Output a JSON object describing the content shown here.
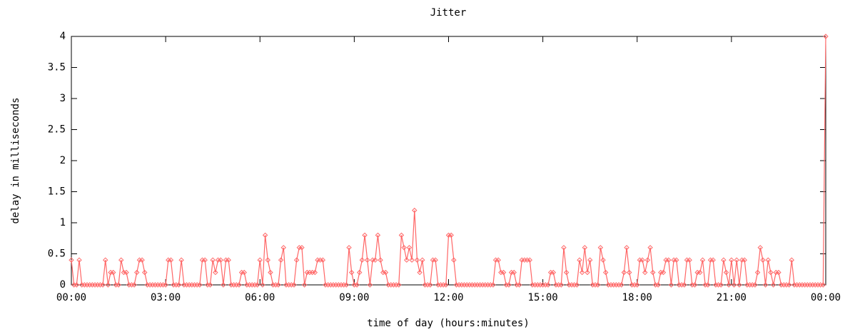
{
  "chart_data": {
    "type": "line",
    "title": "Jitter",
    "x_label": "time of day (hours:minutes)",
    "y_label": "delay in milliseconds",
    "x": [
      0,
      5,
      10,
      15,
      20,
      25,
      30,
      35,
      40,
      45,
      50,
      55,
      60,
      65,
      70,
      75,
      80,
      85,
      90,
      95,
      100,
      105,
      110,
      115,
      120,
      125,
      130,
      135,
      140,
      145,
      150,
      155,
      160,
      165,
      170,
      175,
      180,
      185,
      190,
      195,
      200,
      205,
      210,
      215,
      220,
      225,
      230,
      235,
      240,
      245,
      250,
      255,
      260,
      265,
      270,
      275,
      280,
      285,
      290,
      295,
      300,
      305,
      310,
      315,
      320,
      325,
      330,
      335,
      340,
      345,
      350,
      355,
      360,
      365,
      370,
      375,
      380,
      385,
      390,
      395,
      400,
      405,
      410,
      415,
      420,
      425,
      430,
      435,
      440,
      445,
      450,
      455,
      460,
      465,
      470,
      475,
      480,
      485,
      490,
      495,
      500,
      505,
      510,
      515,
      520,
      525,
      530,
      535,
      540,
      545,
      550,
      555,
      560,
      565,
      570,
      575,
      580,
      585,
      590,
      595,
      600,
      605,
      610,
      615,
      620,
      625,
      630,
      635,
      640,
      645,
      650,
      655,
      660,
      665,
      670,
      675,
      680,
      685,
      690,
      695,
      700,
      705,
      710,
      715,
      720,
      725,
      730,
      735,
      740,
      745,
      750,
      755,
      760,
      765,
      770,
      775,
      780,
      785,
      790,
      795,
      800,
      805,
      810,
      815,
      820,
      825,
      830,
      835,
      840,
      845,
      850,
      855,
      860,
      865,
      870,
      875,
      880,
      885,
      890,
      895,
      900,
      905,
      910,
      915,
      920,
      925,
      930,
      935,
      940,
      945,
      950,
      955,
      960,
      965,
      970,
      975,
      980,
      985,
      990,
      995,
      1000,
      1005,
      1010,
      1015,
      1020,
      1025,
      1030,
      1035,
      1040,
      1045,
      1050,
      1055,
      1060,
      1065,
      1070,
      1075,
      1080,
      1085,
      1090,
      1095,
      1100,
      1105,
      1110,
      1115,
      1120,
      1125,
      1130,
      1135,
      1140,
      1145,
      1150,
      1155,
      1160,
      1165,
      1170,
      1175,
      1180,
      1185,
      1190,
      1195,
      1200,
      1205,
      1210,
      1215,
      1220,
      1225,
      1230,
      1235,
      1240,
      1245,
      1250,
      1255,
      1260,
      1265,
      1270,
      1275,
      1280,
      1285,
      1290,
      1295,
      1300,
      1305,
      1310,
      1315,
      1320,
      1325,
      1330,
      1335,
      1340,
      1345,
      1350,
      1355,
      1360,
      1365,
      1370,
      1375,
      1380,
      1385,
      1390,
      1395,
      1400,
      1405,
      1410,
      1415,
      1420,
      1425,
      1430,
      1435,
      1440
    ],
    "series": [
      {
        "color": "#ff6666",
        "values": [
          0.4,
          0,
          0,
          0.4,
          0,
          0,
          0,
          0,
          0,
          0,
          0,
          0,
          0,
          0.4,
          0,
          0.2,
          0.2,
          0,
          0,
          0.4,
          0.2,
          0.2,
          0,
          0,
          0,
          0.2,
          0.4,
          0.4,
          0.2,
          0,
          0,
          0,
          0,
          0,
          0,
          0,
          0,
          0.4,
          0.4,
          0,
          0,
          0,
          0.4,
          0,
          0,
          0,
          0,
          0,
          0,
          0,
          0.4,
          0.4,
          0,
          0,
          0.4,
          0.2,
          0.4,
          0.4,
          0,
          0.4,
          0.4,
          0,
          0,
          0,
          0,
          0.2,
          0.2,
          0,
          0,
          0,
          0,
          0,
          0.4,
          0,
          0.8,
          0.4,
          0.2,
          0,
          0,
          0,
          0.4,
          0.6,
          0,
          0,
          0,
          0,
          0.4,
          0.6,
          0.6,
          0,
          0.2,
          0.2,
          0.2,
          0.2,
          0.4,
          0.4,
          0.4,
          0,
          0,
          0,
          0,
          0,
          0,
          0,
          0,
          0,
          0.6,
          0.2,
          0,
          0,
          0.2,
          0.4,
          0.8,
          0.4,
          0,
          0.4,
          0.4,
          0.8,
          0.4,
          0.2,
          0.2,
          0,
          0,
          0,
          0,
          0,
          0.8,
          0.6,
          0.4,
          0.6,
          0.4,
          1.2,
          0.4,
          0.2,
          0.4,
          0,
          0,
          0,
          0.4,
          0.4,
          0,
          0,
          0,
          0,
          0.8,
          0.8,
          0.4,
          0,
          0,
          0,
          0,
          0,
          0,
          0,
          0,
          0,
          0,
          0,
          0,
          0,
          0,
          0,
          0.4,
          0.4,
          0.2,
          0.2,
          0,
          0,
          0.2,
          0.2,
          0,
          0,
          0.4,
          0.4,
          0.4,
          0.4,
          0,
          0,
          0,
          0,
          0,
          0,
          0,
          0.2,
          0.2,
          0,
          0,
          0,
          0.6,
          0.2,
          0,
          0,
          0,
          0,
          0.4,
          0.2,
          0.6,
          0.2,
          0.4,
          0,
          0,
          0,
          0.6,
          0.4,
          0.2,
          0,
          0,
          0,
          0,
          0,
          0,
          0.2,
          0.6,
          0.2,
          0,
          0,
          0,
          0.4,
          0.4,
          0.2,
          0.4,
          0.6,
          0.2,
          0,
          0,
          0.2,
          0.2,
          0.4,
          0.4,
          0,
          0.4,
          0.4,
          0,
          0,
          0,
          0.4,
          0.4,
          0,
          0,
          0.2,
          0.2,
          0.4,
          0,
          0,
          0.4,
          0.4,
          0,
          0,
          0,
          0.4,
          0.2,
          0,
          0.4,
          0,
          0.4,
          0,
          0.4,
          0.4,
          0,
          0,
          0,
          0,
          0.2,
          0.6,
          0.4,
          0,
          0.4,
          0.2,
          0,
          0.2,
          0.2,
          0,
          0,
          0,
          0,
          0.4,
          0,
          0,
          0,
          0,
          0,
          0,
          0,
          0,
          0,
          0,
          0,
          0,
          4
        ]
      }
    ],
    "xlim": [
      0,
      1440
    ],
    "xticks": [
      {
        "value": 0,
        "label": "00:00"
      },
      {
        "value": 180,
        "label": "03:00"
      },
      {
        "value": 360,
        "label": "06:00"
      },
      {
        "value": 540,
        "label": "09:00"
      },
      {
        "value": 720,
        "label": "12:00"
      },
      {
        "value": 900,
        "label": "15:00"
      },
      {
        "value": 1080,
        "label": "18:00"
      },
      {
        "value": 1260,
        "label": "21:00"
      },
      {
        "value": 1440,
        "label": "00:00"
      }
    ],
    "ylim": [
      0,
      4
    ],
    "yticks": [
      0,
      0.5,
      1,
      1.5,
      2,
      2.5,
      3,
      3.5,
      4
    ]
  }
}
